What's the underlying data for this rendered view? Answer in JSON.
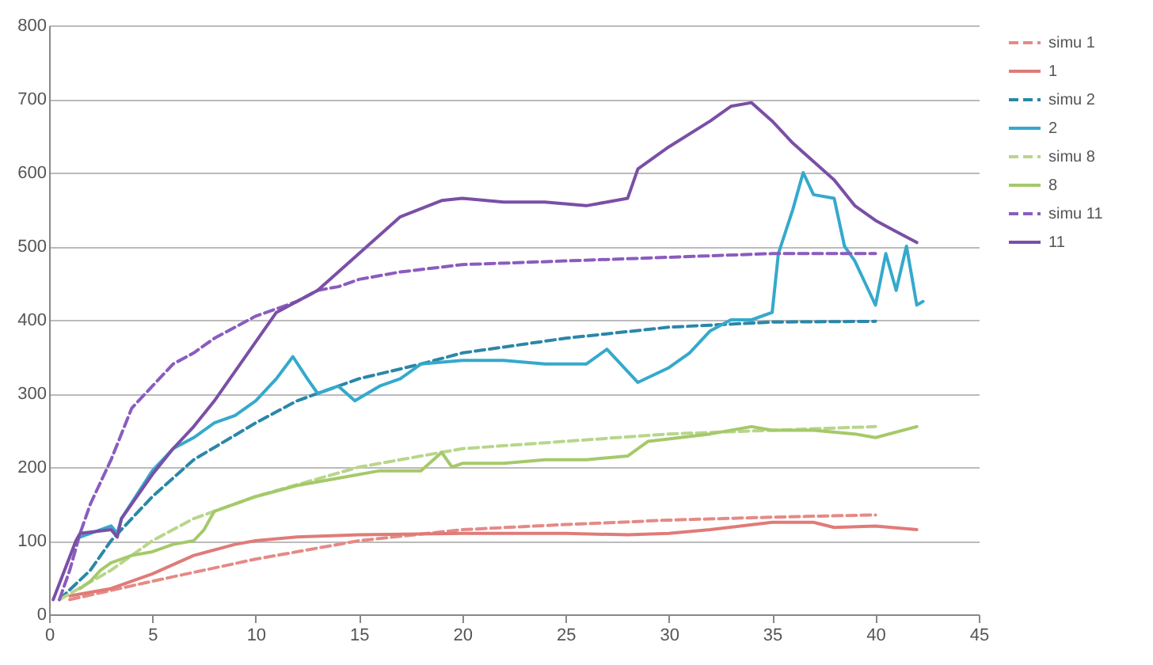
{
  "chart_data": {
    "type": "line",
    "xlim": [
      0,
      45
    ],
    "xticks": [
      0,
      5,
      10,
      15,
      20,
      25,
      30,
      35,
      40,
      45
    ],
    "ylim": [
      0,
      800
    ],
    "yticks": [
      0,
      100,
      200,
      300,
      400,
      500,
      600,
      700,
      800
    ],
    "grid": "y",
    "legend": "right",
    "series": [
      {
        "name": "simu 1",
        "color": "#e58a86",
        "line_style": "dashed",
        "x": [
          1,
          5,
          10,
          15,
          20,
          25,
          30,
          35,
          40
        ],
        "values": [
          20,
          45,
          75,
          100,
          115,
          122,
          128,
          132,
          135
        ]
      },
      {
        "name": "1",
        "color": "#e07b78",
        "line_style": "solid",
        "x": [
          1,
          3,
          5,
          7,
          9,
          10,
          12,
          15,
          20,
          25,
          28,
          30,
          32,
          35,
          37,
          38,
          40,
          42
        ],
        "values": [
          25,
          35,
          55,
          80,
          95,
          100,
          105,
          108,
          110,
          110,
          108,
          110,
          115,
          125,
          125,
          118,
          120,
          115
        ]
      },
      {
        "name": "simu 2",
        "color": "#2a87a8",
        "line_style": "dashed",
        "x": [
          0.5,
          2,
          3,
          5,
          7,
          10,
          12,
          15,
          18,
          20,
          25,
          30,
          35,
          40
        ],
        "values": [
          20,
          60,
          100,
          160,
          210,
          260,
          290,
          320,
          340,
          355,
          375,
          390,
          397,
          398
        ]
      },
      {
        "name": "2",
        "color": "#35a9cc",
        "line_style": "solid",
        "x": [
          1.5,
          3,
          3.3,
          3.5,
          5,
          6,
          7,
          8,
          9,
          10,
          11,
          11.8,
          12.5,
          13,
          14,
          14.8,
          16,
          17,
          18,
          20,
          22,
          24,
          26,
          27,
          28,
          28.5,
          30,
          31,
          32,
          33,
          34,
          35,
          35.3,
          36,
          36.5,
          37,
          38,
          38.5,
          39,
          39.5,
          40,
          40.5,
          41,
          41.5,
          42,
          42.3
        ],
        "values": [
          105,
          120,
          110,
          130,
          195,
          225,
          240,
          260,
          270,
          290,
          320,
          350,
          320,
          300,
          310,
          290,
          310,
          320,
          340,
          345,
          345,
          340,
          340,
          360,
          330,
          315,
          335,
          355,
          385,
          400,
          400,
          410,
          490,
          550,
          600,
          570,
          565,
          500,
          480,
          450,
          420,
          490,
          440,
          500,
          420,
          425
        ]
      },
      {
        "name": "simu 8",
        "color": "#b8d68a",
        "line_style": "dashed",
        "x": [
          0.5,
          3,
          5,
          7,
          10,
          15,
          20,
          25,
          30,
          35,
          40
        ],
        "values": [
          20,
          60,
          100,
          130,
          160,
          200,
          225,
          235,
          245,
          250,
          255
        ]
      },
      {
        "name": "8",
        "color": "#a5c96a",
        "line_style": "solid",
        "x": [
          1.5,
          2,
          2.5,
          3,
          4,
          5,
          6,
          7,
          7.5,
          8,
          10,
          12,
          14,
          16,
          18,
          19,
          19.5,
          20,
          22,
          24,
          26,
          28,
          29,
          32,
          34,
          35,
          37,
          39,
          40,
          42
        ],
        "values": [
          35,
          45,
          60,
          70,
          80,
          85,
          95,
          100,
          115,
          140,
          160,
          175,
          185,
          195,
          195,
          220,
          200,
          205,
          205,
          210,
          210,
          215,
          235,
          245,
          255,
          250,
          250,
          245,
          240,
          255
        ]
      },
      {
        "name": "simu 11",
        "color": "#8a5cbf",
        "line_style": "dashed",
        "x": [
          0.5,
          1,
          1.5,
          2,
          3,
          4,
          5,
          6,
          7,
          8,
          9,
          10,
          11,
          12,
          13,
          14,
          15,
          17,
          20,
          25,
          30,
          35,
          40
        ],
        "values": [
          20,
          60,
          110,
          150,
          210,
          280,
          310,
          340,
          355,
          375,
          390,
          405,
          415,
          425,
          440,
          445,
          455,
          465,
          475,
          480,
          485,
          490,
          490
        ]
      },
      {
        "name": "11",
        "color": "#7a4fa6",
        "line_style": "solid",
        "x": [
          0.2,
          1.3,
          1.5,
          3,
          3.3,
          3.5,
          5,
          6,
          7,
          8,
          9,
          10,
          11,
          12,
          13,
          14,
          15,
          16,
          17,
          19,
          20,
          22,
          24,
          26,
          27,
          28,
          28.5,
          30,
          32,
          33,
          34,
          35,
          36,
          37,
          38,
          39,
          40,
          41,
          42
        ],
        "values": [
          20,
          100,
          110,
          115,
          105,
          130,
          190,
          225,
          255,
          290,
          330,
          370,
          410,
          425,
          440,
          465,
          490,
          515,
          540,
          562,
          565,
          560,
          560,
          555,
          560,
          565,
          605,
          635,
          670,
          690,
          695,
          670,
          640,
          615,
          590,
          555,
          535,
          520,
          505
        ]
      }
    ]
  }
}
